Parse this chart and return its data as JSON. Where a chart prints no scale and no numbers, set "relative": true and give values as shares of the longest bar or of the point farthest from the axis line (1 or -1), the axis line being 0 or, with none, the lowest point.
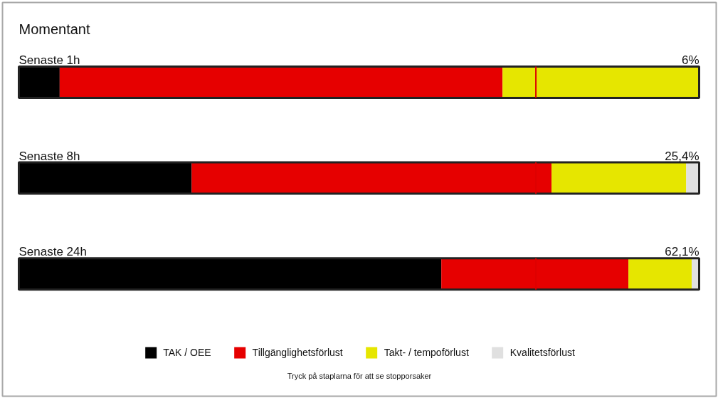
{
  "chart_data": {
    "type": "bar",
    "orientation": "horizontal",
    "stacked": true,
    "relative": true,
    "title": "Momentant",
    "categories": [
      "Senaste  1h",
      "Senaste  8h",
      "Senaste  24h"
    ],
    "series": [
      {
        "name": "TAK / OEE",
        "color": "#000000",
        "values": [
          0.06,
          0.254,
          0.621
        ]
      },
      {
        "name": "Tillgänglighetsförlust",
        "color": "#e60000",
        "values": [
          0.651,
          0.529,
          0.275
        ]
      },
      {
        "name": "Takt- / tempoförlust",
        "color": "#e6e600",
        "values": [
          0.289,
          0.198,
          0.093
        ]
      },
      {
        "name": "Kvalitetsförlust",
        "color": "#e0e0e0",
        "values": [
          null,
          0.019,
          0.011
        ]
      }
    ],
    "tick_labels": "y",
    "ref_lines": [
      {
        "axis": "x",
        "value": 0.76,
        "color": "#dd0000"
      }
    ],
    "legend": "bottom",
    "annotations": [
      {
        "text": "6%",
        "y": "Senaste  1h"
      },
      {
        "text": "25,4%",
        "y": "Senaste  8h"
      },
      {
        "text": "62,1%",
        "y": "Senaste  24h"
      },
      "Tryck på staplarna för att se stopporsaker"
    ]
  }
}
